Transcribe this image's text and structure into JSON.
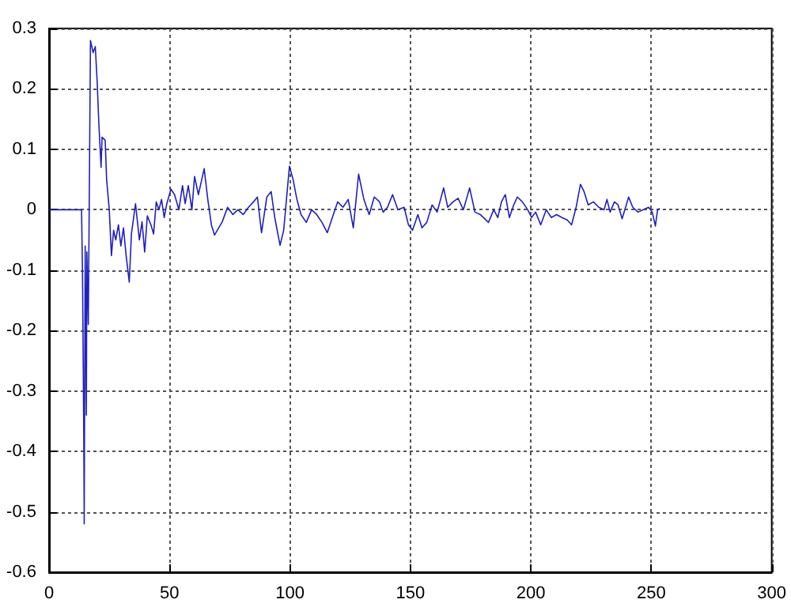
{
  "chart_data": {
    "type": "line",
    "x": [
      0,
      13.5,
      13.9,
      14.4,
      14.6,
      15.0,
      15.5,
      15.7,
      16.3,
      17.2,
      18.3,
      19.2,
      20.0,
      20.7,
      21.6,
      22.0,
      23.3,
      23.9,
      25.0,
      25.9,
      26.8,
      27.7,
      28.8,
      29.8,
      30.9,
      32.0,
      33.3,
      34.2,
      35.9,
      37.5,
      38.6,
      39.7,
      40.8,
      42.3,
      43.4,
      44.5,
      45.6,
      46.7,
      47.8,
      48.9,
      50.6,
      52.1,
      53.9,
      55.4,
      56.5,
      57.8,
      59.3,
      60.4,
      62.0,
      64.4,
      65.9,
      67.4,
      68.7,
      71.9,
      74.1,
      76.3,
      78.4,
      80.6,
      82.8,
      84.9,
      86.5,
      88.2,
      90.4,
      92.2,
      93.7,
      95.9,
      97.4,
      99.8,
      101.3,
      102.9,
      104.6,
      106.8,
      109.0,
      111.1,
      113.3,
      115.5,
      117.6,
      119.8,
      122.0,
      124.2,
      126.3,
      128.5,
      130.7,
      132.9,
      135.0,
      137.2,
      138.7,
      140.5,
      142.6,
      144.8,
      147.4,
      149.2,
      150.9,
      153.1,
      154.8,
      156.8,
      159.0,
      161.1,
      163.8,
      165.5,
      167.7,
      169.8,
      172.0,
      174.6,
      176.8,
      179.0,
      182.4,
      184.6,
      186.3,
      187.8,
      189.4,
      191.1,
      192.9,
      194.4,
      196.5,
      198.7,
      200.3,
      202.0,
      204.1,
      206.4,
      208.5,
      210.7,
      212.9,
      215.1,
      216.9,
      218.8,
      220.6,
      222.1,
      223.8,
      226.0,
      228.2,
      230.4,
      231.6,
      232.9,
      234.7,
      236.2,
      237.9,
      240.6,
      242.3,
      244.5,
      246.7,
      248.9,
      250.4,
      251.7,
      252.6,
      253.5
    ],
    "series": [
      {
        "color": "#2020c0",
        "values": [
          0,
          0,
          -0.11,
          -0.36,
          -0.52,
          -0.06,
          -0.34,
          -0.07,
          -0.19,
          0.28,
          0.26,
          0.27,
          0.21,
          0.14,
          0.07,
          0.12,
          0.115,
          0.05,
          0,
          -0.076,
          -0.034,
          -0.05,
          -0.025,
          -0.06,
          -0.03,
          -0.076,
          -0.12,
          -0.04,
          0.01,
          -0.05,
          -0.02,
          -0.07,
          -0.01,
          -0.025,
          -0.04,
          0.013,
          0,
          0.017,
          -0.013,
          0.01,
          0.034,
          0.025,
          0,
          0.04,
          0.01,
          0.04,
          0,
          0.055,
          0.025,
          0.068,
          0.017,
          -0.025,
          -0.042,
          -0.02,
          0.004,
          -0.008,
          0,
          -0.008,
          0.004,
          0.013,
          0.021,
          -0.038,
          0.021,
          0.03,
          -0.013,
          -0.059,
          -0.034,
          0.072,
          0.05,
          0.017,
          -0.008,
          -0.021,
          0,
          -0.008,
          -0.021,
          -0.038,
          -0.013,
          0.013,
          0.004,
          0.017,
          -0.03,
          0.059,
          0.017,
          -0.008,
          0.021,
          0.013,
          -0.004,
          0.004,
          0.025,
          0,
          0.004,
          -0.025,
          -0.034,
          -0.008,
          -0.03,
          -0.021,
          0.008,
          -0.004,
          0.036,
          0.004,
          0.013,
          0.019,
          0,
          0.036,
          -0.004,
          -0.008,
          -0.021,
          0,
          -0.013,
          0.013,
          0.025,
          -0.013,
          0.008,
          0.021,
          0.013,
          0,
          -0.013,
          -0.004,
          -0.025,
          0,
          -0.013,
          -0.008,
          -0.013,
          -0.017,
          -0.025,
          0.004,
          0.042,
          0.03,
          0.008,
          0.013,
          0.004,
          0,
          0.017,
          -0.004,
          0.013,
          0.008,
          -0.015,
          0.021,
          0.004,
          -0.004,
          0,
          0.004,
          -0.004,
          -0.027,
          0,
          0.002
        ]
      }
    ],
    "xlim": [
      0,
      300
    ],
    "xticks": [
      0,
      50,
      100,
      150,
      200,
      250,
      300
    ],
    "ylim": [
      -0.6,
      0.3
    ],
    "yticks": [
      -0.6,
      -0.5,
      -0.4,
      -0.3,
      -0.2,
      -0.1,
      0,
      0.1,
      0.2,
      0.3
    ],
    "grid": true
  }
}
